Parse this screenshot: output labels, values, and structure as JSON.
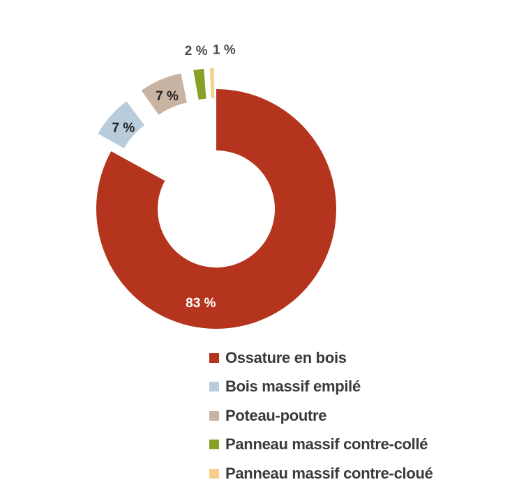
{
  "chart_data": {
    "type": "pie",
    "donut": true,
    "title": "",
    "slices": [
      {
        "name": "Ossature en bois",
        "value": 83,
        "label": "83 %",
        "color": "#b5341e",
        "exploded": false,
        "label_color": "#ffffff"
      },
      {
        "name": "Bois massif empilé",
        "value": 7,
        "label": "7 %",
        "color": "#b9ccdb",
        "exploded": true,
        "label_color": "#222222"
      },
      {
        "name": "Poteau-poutre",
        "value": 7,
        "label": "7 %",
        "color": "#c9b3a3",
        "exploded": true,
        "label_color": "#222222"
      },
      {
        "name": "Panneau massif contre-collé",
        "value": 2,
        "label": "2 %",
        "color": "#86a125",
        "exploded": true,
        "label_color": "#4a4a4a"
      },
      {
        "name": "Panneau massif contre-cloué",
        "value": 1,
        "label": "1 %",
        "color": "#f7cf8a",
        "exploded": true,
        "label_color": "#4a4a4a"
      }
    ],
    "legend_position": "bottom-right"
  }
}
